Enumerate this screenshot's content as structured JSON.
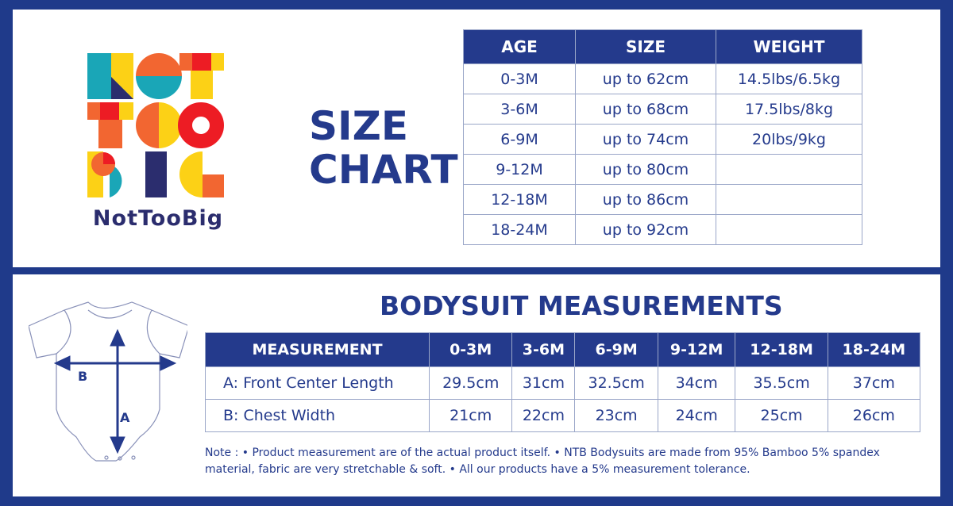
{
  "brand": {
    "logo_letters": "NOT TOO BIG",
    "name": "NotTooBig"
  },
  "size_chart": {
    "title_line1": "SIZE",
    "title_line2": "CHART",
    "headers": [
      "AGE",
      "SIZE",
      "WEIGHT"
    ],
    "rows": [
      [
        "0-3M",
        "up to 62cm",
        "14.5lbs/6.5kg"
      ],
      [
        "3-6M",
        "up to 68cm",
        "17.5lbs/8kg"
      ],
      [
        "6-9M",
        "up to 74cm",
        "20lbs/9kg"
      ],
      [
        "9-12M",
        "up to 80cm",
        ""
      ],
      [
        "12-18M",
        "up to 86cm",
        ""
      ],
      [
        "18-24M",
        "up to 92cm",
        ""
      ]
    ]
  },
  "bodysuit": {
    "title": "BODYSUIT MEASUREMENTS",
    "diagram_labels": {
      "a": "A",
      "b": "B"
    },
    "headers": [
      "MEASUREMENT",
      "0-3M",
      "3-6M",
      "6-9M",
      "9-12M",
      "12-18M",
      "18-24M"
    ],
    "rows": [
      [
        "A: Front Center Length",
        "29.5cm",
        "31cm",
        "32.5cm",
        "34cm",
        "35.5cm",
        "37cm"
      ],
      [
        "B: Chest Width",
        "21cm",
        "22cm",
        "23cm",
        "24cm",
        "25cm",
        "26cm"
      ]
    ],
    "note": "Note : • Product measurement are of the actual product itself. • NTB Bodysuits are made from 95% Bamboo 5% spandex material, fabric are very stretchable & soft. • All our products have a 5% measurement tolerance."
  },
  "colors": {
    "navy": "#1f3a8a",
    "header": "#243a8c",
    "teal": "#1aa6b7",
    "yellow": "#fcd116",
    "orange": "#f26631",
    "red": "#ed1c24",
    "logo_navy": "#2b2d6e"
  }
}
